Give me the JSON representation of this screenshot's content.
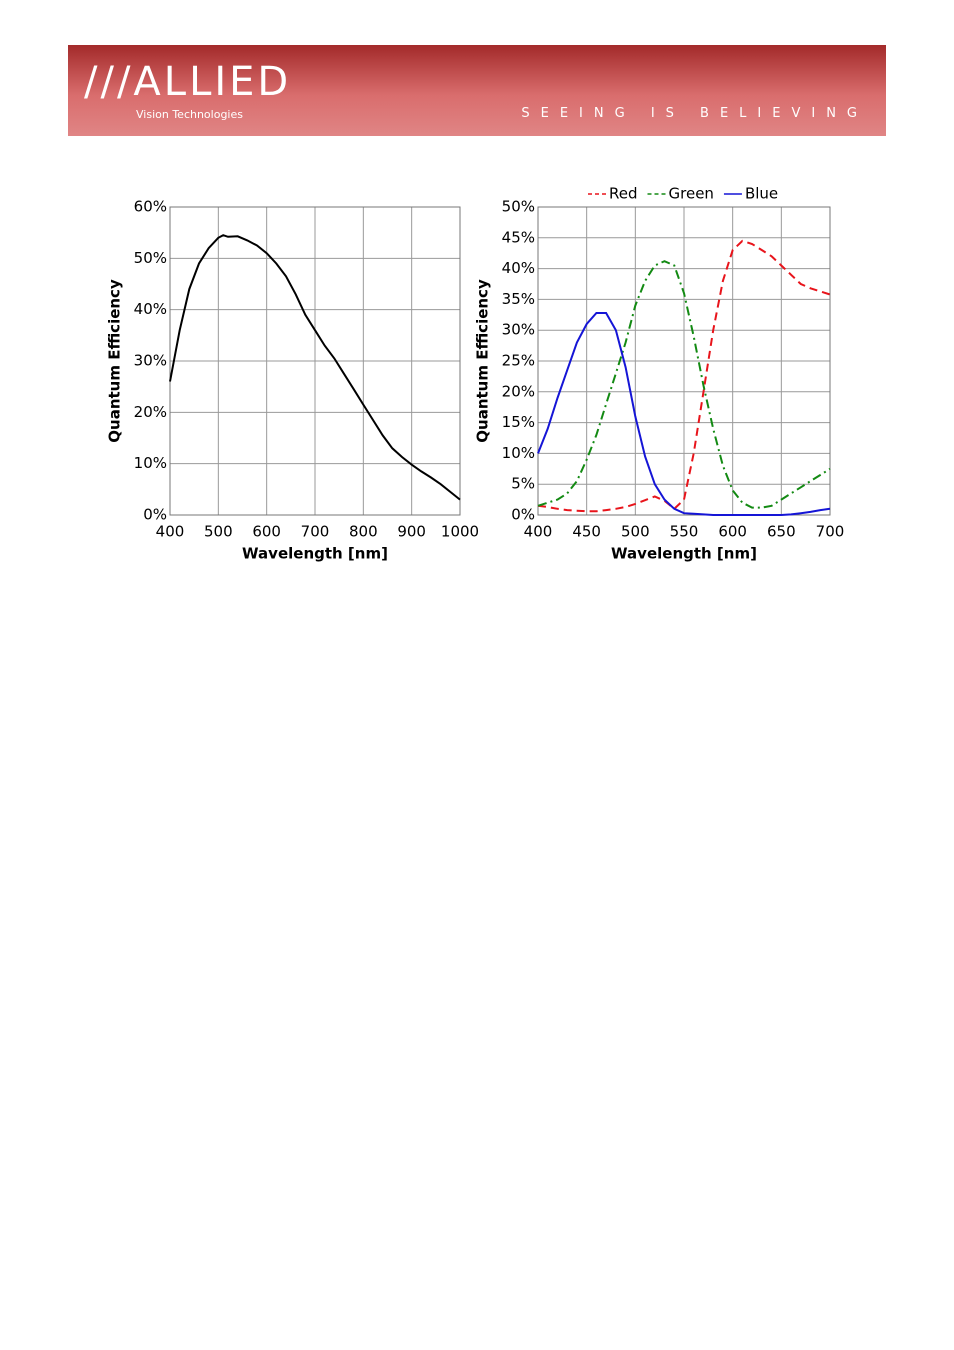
{
  "header": {
    "logo": "///ALLIED",
    "subtitle": "Vision Technologies",
    "tagline": "SEEING IS BELIEVING"
  },
  "chart_data": [
    {
      "type": "line",
      "xlabel": "Wavelength [nm]",
      "ylabel": "Quantum Efficiency",
      "x": [
        400,
        420,
        440,
        460,
        480,
        500,
        510,
        520,
        540,
        560,
        580,
        600,
        620,
        640,
        660,
        680,
        700,
        720,
        740,
        760,
        780,
        800,
        820,
        840,
        860,
        880,
        900,
        920,
        940,
        960,
        980,
        1000
      ],
      "series": [
        {
          "color": "#000000",
          "line_style": "solid",
          "values": [
            26,
            36,
            44,
            49,
            52,
            54,
            54.5,
            54.2,
            54.3,
            53.5,
            52.5,
            51,
            49,
            46.5,
            43,
            39,
            36,
            33,
            30.5,
            27.5,
            24.5,
            21.5,
            18.5,
            15.5,
            13,
            11.3,
            9.8,
            8.5,
            7.3,
            6,
            4.5,
            3
          ]
        }
      ],
      "xlim": [
        400,
        1000
      ],
      "xticks": [
        400,
        500,
        600,
        700,
        800,
        900,
        1000
      ],
      "ylim": [
        0,
        60
      ],
      "yticks": [
        {
          "value": 0,
          "label": "0%"
        },
        {
          "value": 10,
          "label": "10%"
        },
        {
          "value": 20,
          "label": "20%"
        },
        {
          "value": 30,
          "label": "30%"
        },
        {
          "value": 40,
          "label": "40%"
        },
        {
          "value": 50,
          "label": "50%"
        },
        {
          "value": 60,
          "label": "60%"
        }
      ],
      "grid": true
    },
    {
      "type": "line",
      "xlabel": "Wavelength [nm]",
      "ylabel": "Quantum Efficiency",
      "legend": "top",
      "x": [
        400,
        410,
        420,
        430,
        440,
        450,
        460,
        470,
        480,
        490,
        500,
        510,
        520,
        530,
        540,
        550,
        560,
        570,
        580,
        590,
        600,
        610,
        620,
        630,
        640,
        650,
        660,
        670,
        680,
        690,
        700
      ],
      "series": [
        {
          "name": "Red",
          "color": "#e8141b",
          "line_style": "dashed",
          "values": [
            1.5,
            1.3,
            1,
            0.8,
            0.7,
            0.6,
            0.6,
            0.8,
            1,
            1.3,
            1.8,
            2.4,
            3,
            2.3,
            1,
            2.5,
            10,
            20,
            30,
            38,
            43,
            44.5,
            44,
            43,
            42,
            40.5,
            39,
            37.5,
            36.8,
            36.3,
            35.8
          ]
        },
        {
          "name": "Green",
          "color": "#138a13",
          "line_style": "dashdot",
          "values": [
            1.5,
            2,
            2.5,
            3.5,
            5.5,
            9,
            13,
            18,
            23,
            28,
            34,
            38,
            40.5,
            41.2,
            40.5,
            36,
            29,
            21,
            14,
            8,
            4,
            2,
            1.2,
            1.2,
            1.5,
            2.5,
            3.5,
            4.5,
            5.5,
            6.5,
            7.5
          ]
        },
        {
          "name": "Blue",
          "color": "#1515d6",
          "line_style": "solid",
          "values": [
            10,
            14,
            19,
            23.5,
            28,
            31,
            32.8,
            32.8,
            30,
            24,
            16,
            9.5,
            5,
            2.5,
            1,
            0.3,
            0.2,
            0.1,
            0,
            0,
            0,
            0,
            0,
            0,
            0,
            0,
            0.1,
            0.3,
            0.5,
            0.8,
            1
          ]
        }
      ],
      "xlim": [
        400,
        700
      ],
      "xticks": [
        400,
        450,
        500,
        550,
        600,
        650,
        700
      ],
      "ylim": [
        0,
        50
      ],
      "yticks": [
        {
          "value": 0,
          "label": "0%"
        },
        {
          "value": 5,
          "label": "5%"
        },
        {
          "value": 10,
          "label": "10%"
        },
        {
          "value": 15,
          "label": "15%"
        },
        {
          "value": 20,
          "label": "20%"
        },
        {
          "value": 25,
          "label": "25%"
        },
        {
          "value": 30,
          "label": "30%"
        },
        {
          "value": 35,
          "label": "35%"
        },
        {
          "value": 40,
          "label": "40%"
        },
        {
          "value": 45,
          "label": "45%"
        },
        {
          "value": 50,
          "label": "50%"
        }
      ],
      "grid": true
    }
  ]
}
